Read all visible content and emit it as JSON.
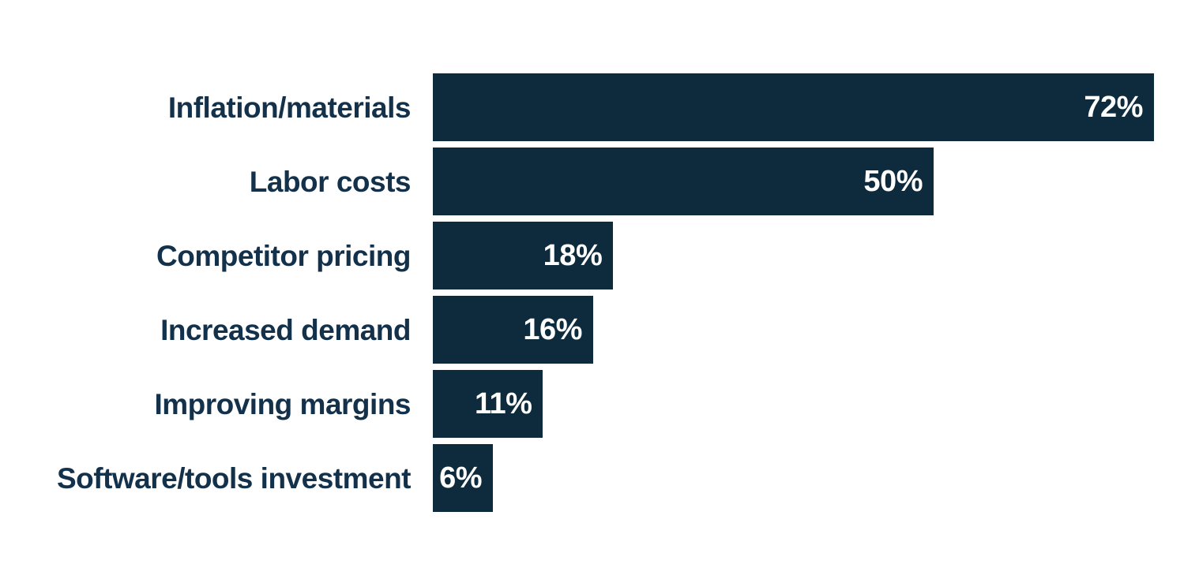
{
  "chart_data": {
    "type": "bar",
    "orientation": "horizontal",
    "categories": [
      "Inflation/materials",
      "Labor costs",
      "Competitor pricing",
      "Increased demand",
      "Improving margins",
      "Software/tools investment"
    ],
    "values": [
      72,
      50,
      18,
      16,
      11,
      6
    ],
    "value_labels": [
      "72%",
      "50%",
      "18%",
      "16%",
      "11%",
      "6%"
    ],
    "title": "",
    "xlabel": "",
    "ylabel": "",
    "xlim": [
      0,
      75
    ],
    "grid": false,
    "legend": "none",
    "data_labels": "inside-end",
    "colors": {
      "bar": "#0d2b3c",
      "category_label": "#13314a",
      "value_label": "#ffffff",
      "background": "#ffffff"
    }
  }
}
